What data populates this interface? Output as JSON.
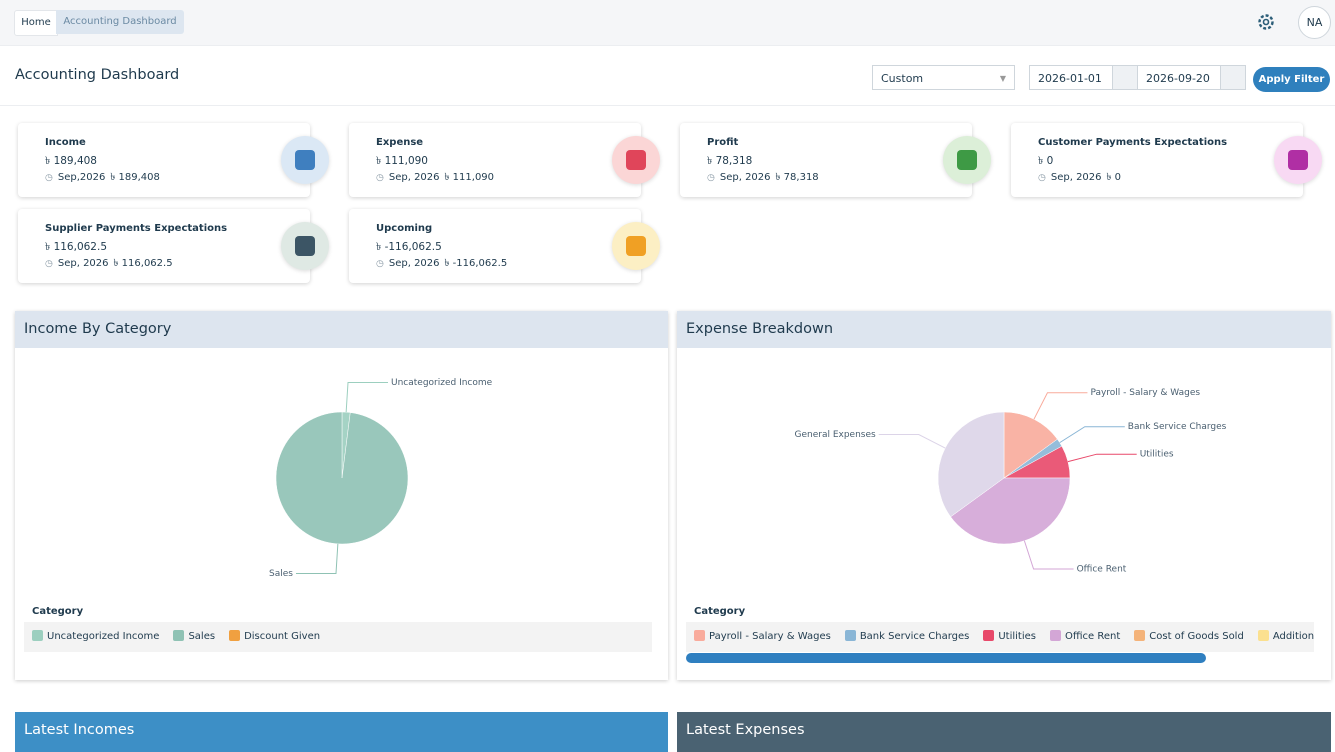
{
  "breadcrumb": [
    "Home",
    "Accounting Dashboard"
  ],
  "avatar": "NA",
  "page_title": "Accounting Dashboard",
  "filter": {
    "period": "Custom",
    "start": "2026-01-01",
    "end": "2026-09-20",
    "button": "Apply Filter"
  },
  "cards": [
    {
      "title": "Income",
      "amount": "৳ 189,408",
      "period": "Sep,2026",
      "period_amount": "৳ 189,408",
      "color": "#3f7fbf",
      "bg": "#dbe8f5"
    },
    {
      "title": "Expense",
      "amount": "৳ 111,090",
      "period": "Sep, 2026",
      "period_amount": "৳ 111,090",
      "color": "#e0455a",
      "bg": "#fbd6d6"
    },
    {
      "title": "Profit",
      "amount": "৳ 78,318",
      "period": "Sep, 2026",
      "period_amount": "৳ 78,318",
      "color": "#3e9a45",
      "bg": "#dcefd8"
    },
    {
      "title": "Customer Payments Expectations",
      "amount": "৳ 0",
      "period": "Sep, 2026",
      "period_amount": "৳ 0",
      "color": "#b02fa4",
      "bg": "#f8d9f3"
    },
    {
      "title": "Supplier Payments Expectations",
      "amount": "৳ 116,062.5",
      "period": "Sep, 2026",
      "period_amount": "৳ 116,062.5",
      "color": "#3c5565",
      "bg": "#dfe9e4"
    },
    {
      "title": "Upcoming",
      "amount": "৳ -116,062.5",
      "period": "Sep, 2026",
      "period_amount": "৳ -116,062.5",
      "color": "#f0a024",
      "bg": "#fcefc4"
    }
  ],
  "charts": [
    {
      "type": "pie",
      "title": "Income By Category",
      "legend_title": "Category",
      "series": [
        {
          "name": "Uncategorized Income",
          "color": "#9ccfbf",
          "value": 2
        },
        {
          "name": "Sales",
          "color": "#8fc2b4",
          "value": 98
        },
        {
          "name": "Discount Given",
          "color": "#f0a040",
          "value": 0
        }
      ]
    },
    {
      "type": "pie",
      "title": "Expense Breakdown",
      "legend_title": "Category",
      "series": [
        {
          "name": "Payroll - Salary & Wages",
          "color": "#f9ab9c",
          "value": 15
        },
        {
          "name": "Bank Service Charges",
          "color": "#8ab6d6",
          "value": 2
        },
        {
          "name": "Utilities",
          "color": "#e8496a",
          "value": 8
        },
        {
          "name": "Office Rent",
          "color": "#d3a6d6",
          "value": 40
        },
        {
          "name": "Cost of Goods Sold",
          "color": "#f4b37a",
          "value": 0
        },
        {
          "name": "Additional Charges",
          "color": "#fbe08f",
          "value": 0
        },
        {
          "name": "General Expenses",
          "color": "#dcd4e8",
          "value": 35
        }
      ]
    }
  ],
  "tables": [
    {
      "title": "Latest Incomes"
    },
    {
      "title": "Latest Expenses"
    }
  ]
}
